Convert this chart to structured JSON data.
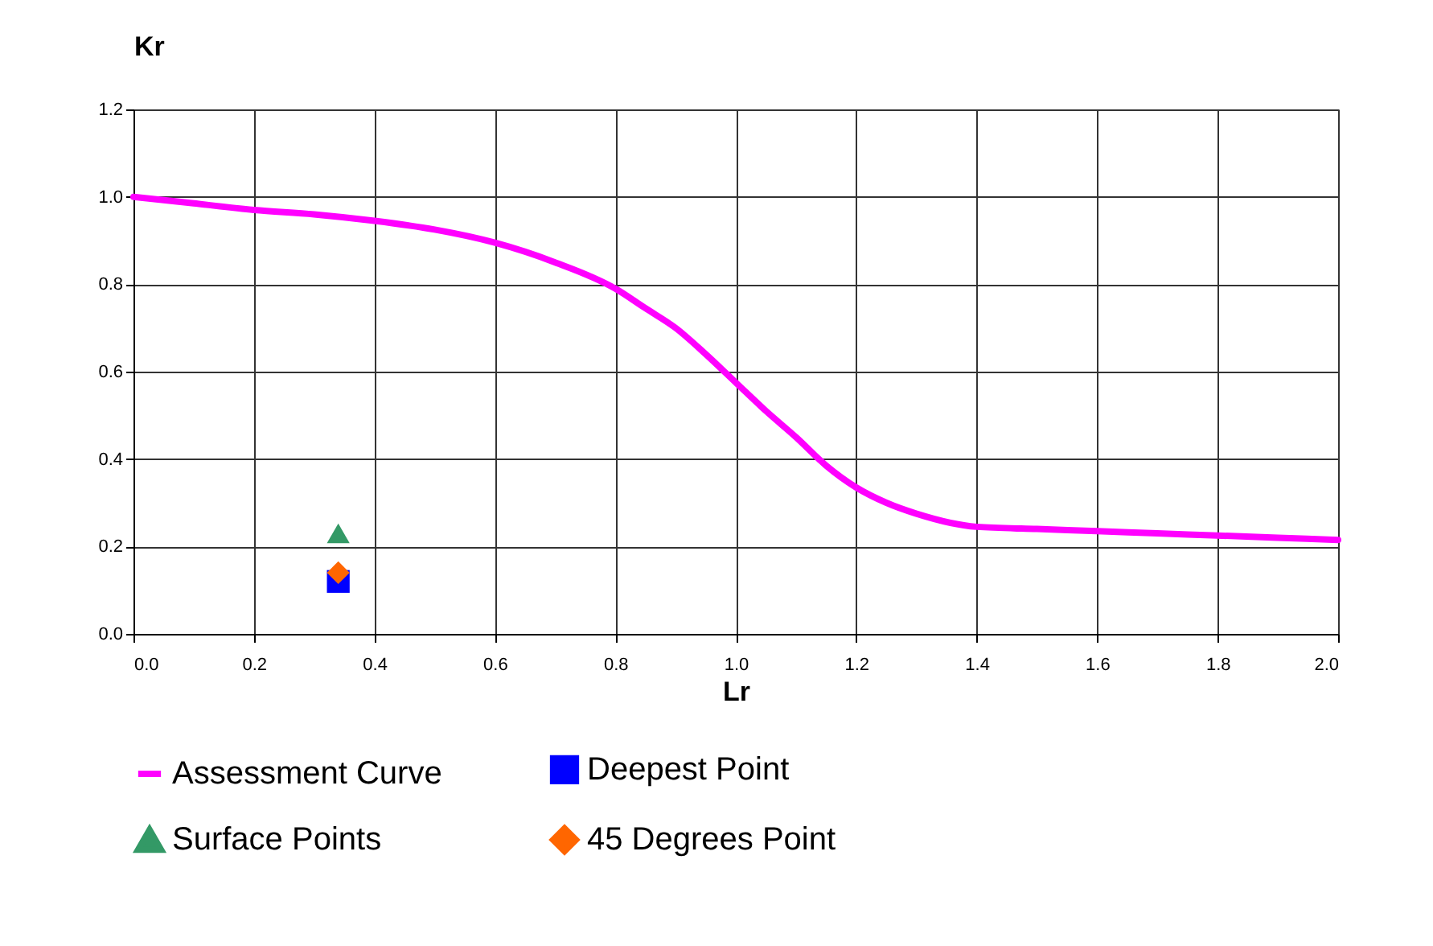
{
  "chart_data": {
    "type": "line",
    "xlabel": "Lr",
    "ylabel": "Kr",
    "xlim": [
      0,
      2.0
    ],
    "ylim": [
      0,
      1.2
    ],
    "xticks": [
      {
        "value": 0,
        "label": "0.0"
      },
      0.2,
      0.4,
      0.6,
      0.8,
      {
        "value": 1,
        "label": "1.0"
      },
      1.2,
      1.4,
      1.6,
      1.8,
      {
        "value": 2,
        "label": "2.0"
      }
    ],
    "yticks": [
      {
        "value": 0,
        "label": "0.0"
      },
      0.2,
      0.4,
      0.6,
      0.8,
      {
        "value": 1,
        "label": "1.0"
      },
      1.2
    ],
    "grid": true,
    "legend": "bottom",
    "series": [
      {
        "name": "Assessment Curve",
        "type": "line",
        "color": "#ff00ff",
        "x": [
          0,
          0.1,
          0.2,
          0.3,
          0.4,
          0.5,
          0.6,
          0.7,
          0.8,
          0.85,
          0.9,
          0.95,
          1.0,
          1.05,
          1.1,
          1.15,
          1.2,
          1.25,
          1.3,
          1.4,
          1.5,
          1.6,
          1.7,
          1.8,
          1.9,
          2.0
        ],
        "values": [
          1.0,
          0.985,
          0.97,
          0.96,
          0.945,
          0.925,
          0.895,
          0.85,
          0.79,
          0.745,
          0.7,
          0.64,
          0.575,
          0.51,
          0.45,
          0.385,
          0.335,
          0.3,
          0.275,
          0.245,
          0.24,
          0.235,
          0.23,
          0.225,
          0.22,
          0.215
        ]
      },
      {
        "name": "Deepest Point",
        "type": "scatter",
        "color": "#0000ff",
        "marker": "square",
        "x": [
          0.34
        ],
        "values": [
          0.12
        ]
      },
      {
        "name": "Surface Points",
        "type": "scatter",
        "color": "#339966",
        "marker": "triangle",
        "x": [
          0.34
        ],
        "values": [
          0.23
        ]
      },
      {
        "name": "45 Degrees Point",
        "type": "scatter",
        "color": "#ff6600",
        "marker": "diamond",
        "x": [
          0.34
        ],
        "values": [
          0.14
        ]
      }
    ]
  }
}
